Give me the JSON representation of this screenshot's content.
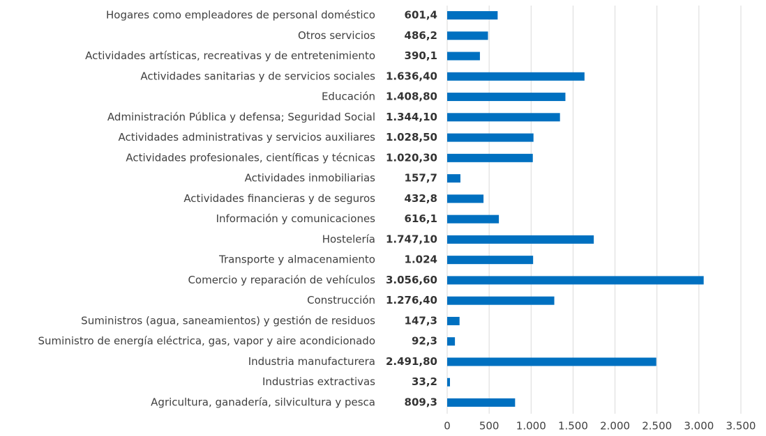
{
  "chart_data": {
    "type": "bar",
    "orientation": "horizontal",
    "categories": [
      "Hogares como empleadores de personal doméstico",
      "Otros servicios",
      "Actividades artísticas, recreativas y de entretenimiento",
      "Actividades sanitarias y de servicios sociales",
      "Educación",
      "Administración Pública y defensa; Seguridad Social",
      "Actividades administrativas y servicios auxiliares",
      "Actividades profesionales, científicas y técnicas",
      "Actividades inmobiliarias",
      "Actividades financieras y de seguros",
      "Información y comunicaciones",
      "Hostelería",
      "Transporte y almacenamiento",
      "Comercio y reparación de vehículos",
      "Construcción",
      "Suministros (agua, saneamientos) y gestión de residuos",
      "Suministro de energía eléctrica, gas, vapor y aire acondicionado",
      "Industria manufacturera",
      "Industrias extractivas",
      "Agricultura, ganadería, silvicultura y pesca"
    ],
    "values": [
      601.4,
      486.2,
      390.1,
      1636.4,
      1408.8,
      1344.1,
      1028.5,
      1020.3,
      157.7,
      432.8,
      616.1,
      1747.1,
      1024,
      3056.6,
      1276.4,
      147.3,
      92.3,
      2491.8,
      33.2,
      809.3
    ],
    "value_labels": [
      "601,4",
      "486,2",
      "390,1",
      "1.636,40",
      "1.408,80",
      "1.344,10",
      "1.028,50",
      "1.020,30",
      "157,7",
      "432,8",
      "616,1",
      "1.747,10",
      "1.024",
      "3.056,60",
      "1.276,40",
      "147,3",
      "92,3",
      "2.491,80",
      "33,2",
      "809,3"
    ],
    "color": "#0070c0",
    "xlim": [
      0,
      3500
    ],
    "xticks": [
      0,
      500,
      {
        "value": 1000,
        "label": "1.000"
      },
      {
        "value": 1500,
        "label": "1.500"
      },
      {
        "value": 2000,
        "label": "2.000"
      },
      {
        "value": 2500,
        "label": "2.500"
      },
      {
        "value": 3000,
        "label": "3.000"
      },
      {
        "value": 3500,
        "label": "3.500"
      }
    ],
    "grid": true
  }
}
